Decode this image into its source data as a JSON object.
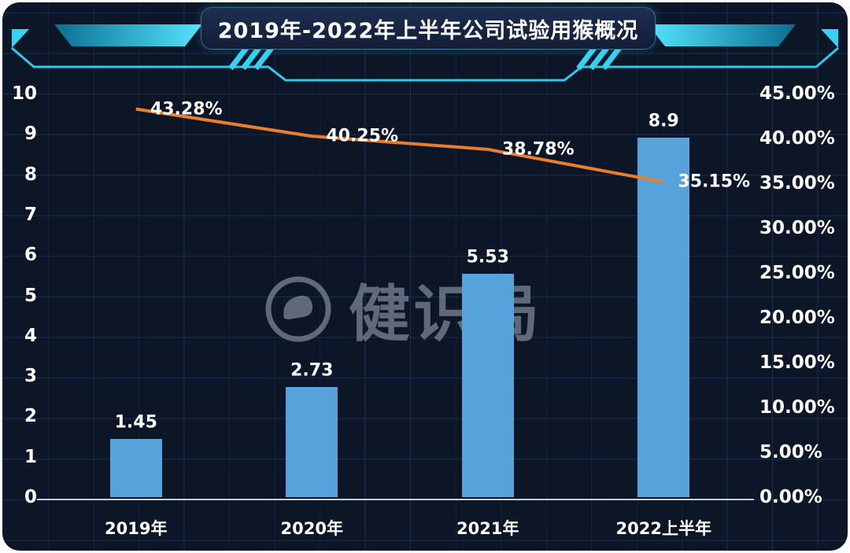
{
  "header": {
    "title": "2019年-2022年上半年公司试验用猴概况"
  },
  "watermark": {
    "text": "健识局"
  },
  "colors": {
    "background": "#0c1626",
    "grid": "#26467d",
    "bar": "#56a2da",
    "line": "#e97e2e",
    "accent": "#35d3f2",
    "text": "#ffffff"
  },
  "chart_data": {
    "type": "combo-bar-line",
    "title": "2019年-2022年上半年公司试验用猴概况",
    "categories": [
      "2019年",
      "2020年",
      "2021年",
      "2022上半年"
    ],
    "series": [
      {
        "type": "bar",
        "axis": "left",
        "color": "#56a2da",
        "values": [
          1.45,
          2.73,
          5.53,
          8.9
        ],
        "labels": [
          "1.45",
          "2.73",
          "5.53",
          "8.9"
        ]
      },
      {
        "type": "line",
        "axis": "right",
        "color": "#e97e2e",
        "values": [
          43.28,
          40.25,
          38.78,
          35.15
        ],
        "labels": [
          "43.28%",
          "40.25%",
          "38.78%",
          "35.15%"
        ]
      }
    ],
    "left_axis": {
      "min": 0,
      "max": 10,
      "ticks": [
        "10",
        "9",
        "8",
        "7",
        "6",
        "5",
        "4",
        "3",
        "2",
        "1",
        "0"
      ]
    },
    "right_axis": {
      "min": 0,
      "max": 45,
      "ticks": [
        "45.00%",
        "40.00%",
        "35.00%",
        "30.00%",
        "25.00%",
        "20.00%",
        "15.00%",
        "10.00%",
        "5.00%",
        "0.00%"
      ]
    },
    "grid": true,
    "legend_position": "none"
  }
}
